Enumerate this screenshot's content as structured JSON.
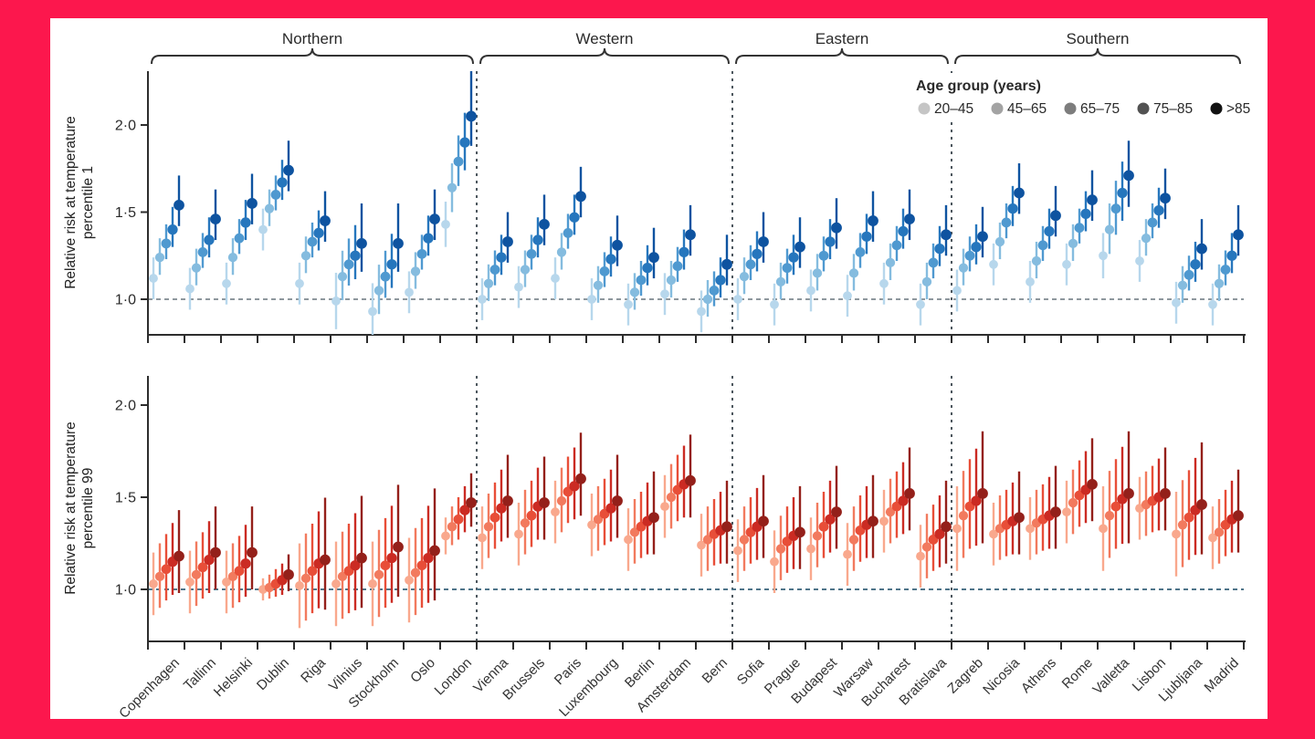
{
  "colors": {
    "frame_pink": "#fc174d",
    "canvas_white": "#ffffff",
    "axis": "#2d2d2d",
    "text": "#2a2a2a",
    "separator_dash": "#4d575e",
    "brace": "#333333"
  },
  "legend": {
    "title": "Age group (years)"
  },
  "chart_data": {
    "type": "scatter",
    "age_groups": [
      {
        "label": "20–45",
        "legend_color": "#c5c5c5"
      },
      {
        "label": "45–65",
        "legend_color": "#a3a3a3"
      },
      {
        "label": "65–75",
        "legend_color": "#7d7d7d"
      },
      {
        "label": "75–85",
        "legend_color": "#525252"
      },
      {
        "label": ">85",
        "legend_color": "#121212"
      }
    ],
    "regions": [
      {
        "label": "Northern",
        "count": 9
      },
      {
        "label": "Western",
        "count": 7
      },
      {
        "label": "Eastern",
        "count": 6
      },
      {
        "label": "Southern",
        "count": 8
      }
    ],
    "panels": [
      {
        "id": "p1",
        "ylabel_line1": "Relative risk at temperature",
        "ylabel_line2": "percentile 1",
        "tick_labels": [
          "2·0",
          "1·5",
          "1·0"
        ],
        "tick_values": [
          2.0,
          1.5,
          1.0
        ],
        "ref_value": 1.0,
        "ref_color": "#8e979d",
        "palette": [
          "#b7d7ec",
          "#85bcdf",
          "#4f99d0",
          "#2676bd",
          "#0e53a0"
        ]
      },
      {
        "id": "p99",
        "ylabel_line1": "Relative risk at temperature",
        "ylabel_line2": "percentile 99",
        "tick_labels": [
          "2·0",
          "1·5",
          "1·0"
        ],
        "tick_values": [
          2.0,
          1.5,
          1.0
        ],
        "ref_value": 1.0,
        "ref_color": "#4e7489",
        "palette": [
          "#f9a88d",
          "#f27a5e",
          "#e84e38",
          "#cb2b23",
          "#94201a"
        ]
      }
    ],
    "default_ci": {
      "p1": {
        "lo": [
          0.12,
          0.1,
          0.09,
          0.1,
          0.12
        ],
        "hi": [
          0.12,
          0.11,
          0.11,
          0.13,
          0.17
        ]
      },
      "p99": {
        "lo": [
          0.17,
          0.17,
          0.17,
          0.18,
          0.2
        ],
        "hi": [
          0.17,
          0.18,
          0.19,
          0.21,
          0.25
        ]
      }
    },
    "wide_multiplier": 1.35,
    "cities": [
      {
        "name": "Copenhagen",
        "region": "Northern",
        "p1": [
          1.12,
          1.24,
          1.32,
          1.4,
          1.54
        ],
        "p99": [
          1.03,
          1.07,
          1.11,
          1.15,
          1.18
        ]
      },
      {
        "name": "Tallinn",
        "region": "Northern",
        "p1": [
          1.06,
          1.18,
          1.27,
          1.34,
          1.46
        ],
        "p99": [
          1.04,
          1.08,
          1.12,
          1.16,
          1.2
        ]
      },
      {
        "name": "Helsinki",
        "region": "Northern",
        "p1": [
          1.09,
          1.24,
          1.35,
          1.44,
          1.55
        ],
        "p99": [
          1.04,
          1.07,
          1.1,
          1.14,
          1.2
        ]
      },
      {
        "name": "Dublin",
        "region": "Northern",
        "p1": [
          1.4,
          1.52,
          1.6,
          1.67,
          1.74
        ],
        "p99": [
          1.0,
          1.01,
          1.03,
          1.05,
          1.08
        ],
        "ci_p99": {
          "lo": [
            0.06,
            0.06,
            0.07,
            0.08,
            0.09
          ],
          "hi": [
            0.06,
            0.07,
            0.08,
            0.09,
            0.11
          ]
        }
      },
      {
        "name": "Riga",
        "region": "Northern",
        "p1": [
          1.09,
          1.25,
          1.33,
          1.38,
          1.45
        ],
        "p99": [
          1.02,
          1.06,
          1.1,
          1.14,
          1.16
        ],
        "wide_p99": true
      },
      {
        "name": "Vilnius",
        "region": "Northern",
        "p1": [
          0.99,
          1.13,
          1.2,
          1.25,
          1.32
        ],
        "p99": [
          1.03,
          1.07,
          1.1,
          1.13,
          1.17
        ],
        "wide_p1": true,
        "wide_p99": true
      },
      {
        "name": "Stockholm",
        "region": "Northern",
        "p1": [
          0.93,
          1.05,
          1.13,
          1.2,
          1.32
        ],
        "p99": [
          1.03,
          1.08,
          1.13,
          1.17,
          1.23
        ],
        "wide_p1": true,
        "wide_p99": true
      },
      {
        "name": "Oslo",
        "region": "Northern",
        "p1": [
          1.04,
          1.16,
          1.26,
          1.35,
          1.46
        ],
        "p99": [
          1.05,
          1.09,
          1.13,
          1.17,
          1.21
        ],
        "wide_p99": true
      },
      {
        "name": "London",
        "region": "Northern",
        "p1": [
          1.43,
          1.64,
          1.79,
          1.9,
          2.05
        ],
        "p99": [
          1.29,
          1.34,
          1.38,
          1.43,
          1.47
        ],
        "ci_p1": {
          "lo": [
            0.13,
            0.14,
            0.14,
            0.16,
            0.17
          ],
          "hi": [
            0.13,
            0.14,
            0.15,
            0.17,
            0.28
          ]
        },
        "ci_p99": {
          "lo": [
            0.1,
            0.1,
            0.11,
            0.12,
            0.13
          ],
          "hi": [
            0.1,
            0.11,
            0.12,
            0.13,
            0.16
          ]
        }
      },
      {
        "name": "Vienna",
        "region": "Western",
        "p1": [
          1.0,
          1.09,
          1.17,
          1.24,
          1.33
        ],
        "p99": [
          1.28,
          1.34,
          1.39,
          1.44,
          1.48
        ]
      },
      {
        "name": "Brussels",
        "region": "Western",
        "p1": [
          1.07,
          1.17,
          1.26,
          1.34,
          1.43
        ],
        "p99": [
          1.3,
          1.36,
          1.4,
          1.45,
          1.47
        ]
      },
      {
        "name": "Paris",
        "region": "Western",
        "p1": [
          1.12,
          1.27,
          1.38,
          1.47,
          1.59
        ],
        "p99": [
          1.42,
          1.48,
          1.53,
          1.56,
          1.6
        ]
      },
      {
        "name": "Luxembourg",
        "region": "Western",
        "p1": [
          1.0,
          1.08,
          1.16,
          1.23,
          1.31
        ],
        "p99": [
          1.35,
          1.38,
          1.41,
          1.44,
          1.48
        ]
      },
      {
        "name": "Berlin",
        "region": "Western",
        "p1": [
          0.97,
          1.04,
          1.11,
          1.18,
          1.24
        ],
        "p99": [
          1.27,
          1.31,
          1.34,
          1.37,
          1.39
        ]
      },
      {
        "name": "Amsterdam",
        "region": "Western",
        "p1": [
          1.03,
          1.11,
          1.19,
          1.27,
          1.37
        ],
        "p99": [
          1.45,
          1.5,
          1.54,
          1.57,
          1.59
        ]
      },
      {
        "name": "Bern",
        "region": "Western",
        "p1": [
          0.93,
          1.0,
          1.05,
          1.11,
          1.2
        ],
        "p99": [
          1.24,
          1.27,
          1.3,
          1.32,
          1.34
        ]
      },
      {
        "name": "Sofia",
        "region": "Eastern",
        "p1": [
          1.0,
          1.13,
          1.2,
          1.26,
          1.33
        ],
        "p99": [
          1.21,
          1.27,
          1.31,
          1.34,
          1.37
        ]
      },
      {
        "name": "Prague",
        "region": "Eastern",
        "p1": [
          0.97,
          1.1,
          1.18,
          1.24,
          1.3
        ],
        "p99": [
          1.15,
          1.22,
          1.26,
          1.29,
          1.31
        ]
      },
      {
        "name": "Budapest",
        "region": "Eastern",
        "p1": [
          1.05,
          1.15,
          1.25,
          1.33,
          1.41
        ],
        "p99": [
          1.22,
          1.29,
          1.34,
          1.38,
          1.42
        ]
      },
      {
        "name": "Warsaw",
        "region": "Eastern",
        "p1": [
          1.02,
          1.15,
          1.27,
          1.36,
          1.45
        ],
        "p99": [
          1.19,
          1.27,
          1.32,
          1.35,
          1.37
        ]
      },
      {
        "name": "Bucharest",
        "region": "Eastern",
        "p1": [
          1.09,
          1.21,
          1.31,
          1.39,
          1.46
        ],
        "p99": [
          1.37,
          1.42,
          1.45,
          1.48,
          1.52
        ]
      },
      {
        "name": "Bratislava",
        "region": "Eastern",
        "p1": [
          0.97,
          1.1,
          1.21,
          1.29,
          1.37
        ],
        "p99": [
          1.18,
          1.23,
          1.27,
          1.3,
          1.34
        ]
      },
      {
        "name": "Zagreb",
        "region": "Southern",
        "p1": [
          1.05,
          1.18,
          1.25,
          1.3,
          1.36
        ],
        "p99": [
          1.33,
          1.4,
          1.45,
          1.48,
          1.52
        ],
        "wide_p99": true
      },
      {
        "name": "Nicosia",
        "region": "Southern",
        "p1": [
          1.2,
          1.33,
          1.44,
          1.52,
          1.61
        ],
        "p99": [
          1.3,
          1.33,
          1.35,
          1.37,
          1.39
        ]
      },
      {
        "name": "Athens",
        "region": "Southern",
        "p1": [
          1.1,
          1.22,
          1.31,
          1.39,
          1.48
        ],
        "p99": [
          1.33,
          1.36,
          1.38,
          1.4,
          1.42
        ]
      },
      {
        "name": "Rome",
        "region": "Southern",
        "p1": [
          1.2,
          1.32,
          1.41,
          1.49,
          1.57
        ],
        "p99": [
          1.42,
          1.47,
          1.51,
          1.54,
          1.57
        ]
      },
      {
        "name": "Valletta",
        "region": "Southern",
        "p1": [
          1.25,
          1.4,
          1.52,
          1.61,
          1.71
        ],
        "p99": [
          1.33,
          1.4,
          1.45,
          1.49,
          1.52
        ],
        "wide_p99": true,
        "ci_p1": {
          "lo": [
            0.13,
            0.14,
            0.15,
            0.16,
            0.18
          ],
          "hi": [
            0.13,
            0.15,
            0.16,
            0.18,
            0.2
          ]
        }
      },
      {
        "name": "Lisbon",
        "region": "Southern",
        "p1": [
          1.22,
          1.35,
          1.44,
          1.51,
          1.58
        ],
        "p99": [
          1.44,
          1.46,
          1.48,
          1.5,
          1.52
        ]
      },
      {
        "name": "Ljubljana",
        "region": "Southern",
        "p1": [
          0.98,
          1.08,
          1.14,
          1.2,
          1.29
        ],
        "p99": [
          1.3,
          1.35,
          1.39,
          1.43,
          1.46
        ],
        "wide_p99": true
      },
      {
        "name": "Madrid",
        "region": "Southern",
        "p1": [
          0.97,
          1.09,
          1.17,
          1.25,
          1.37
        ],
        "p99": [
          1.28,
          1.31,
          1.35,
          1.38,
          1.4
        ]
      }
    ]
  }
}
